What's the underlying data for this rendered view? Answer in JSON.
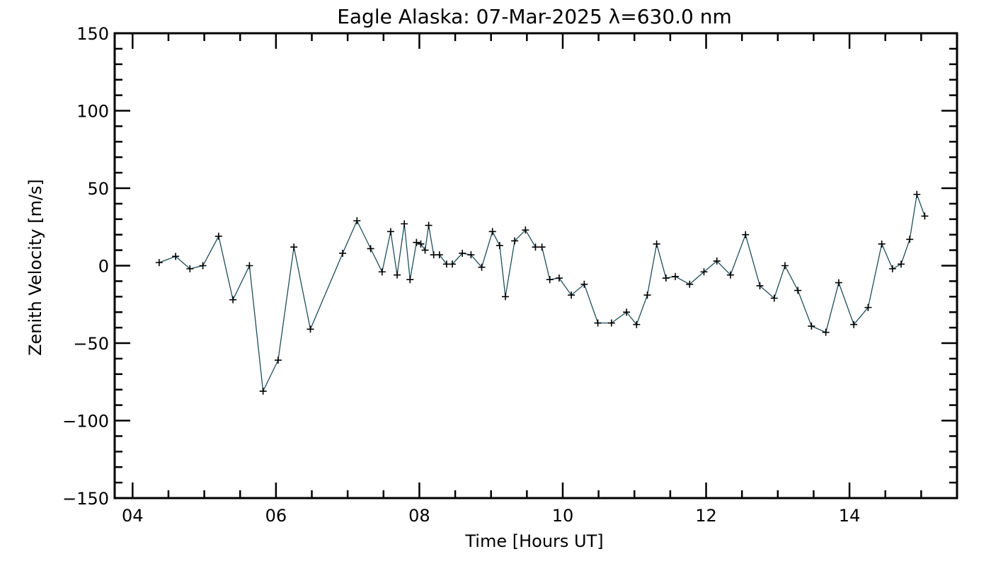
{
  "chart_data": {
    "type": "line",
    "title": "Eagle Alaska: 07-Mar-2025 λ=630.0 nm",
    "xlabel": "Time [Hours UT]",
    "ylabel": "Zenith Velocity [m/s]",
    "xlim": [
      3.75,
      15.5
    ],
    "ylim": [
      -150,
      150
    ],
    "xticks": [
      {
        "value": 4,
        "label": "04"
      },
      {
        "value": 6,
        "label": "06"
      },
      {
        "value": 8,
        "label": "08"
      },
      {
        "value": 10,
        "label": "10"
      },
      {
        "value": 12,
        "label": "12"
      },
      {
        "value": 14,
        "label": "14"
      }
    ],
    "yticks": [
      {
        "value": -150,
        "label": "−150"
      },
      {
        "value": -100,
        "label": "−100"
      },
      {
        "value": -50,
        "label": "−50"
      },
      {
        "value": 0,
        "label": "0"
      },
      {
        "value": 50,
        "label": "50"
      },
      {
        "value": 100,
        "label": "100"
      },
      {
        "value": 150,
        "label": "150"
      }
    ],
    "grid": false,
    "marker": "plus",
    "line_color": "#1f4e5a",
    "marker_color": "#000000",
    "series": [
      {
        "x": [
          4.37,
          4.6,
          4.8,
          4.98,
          5.2,
          5.4,
          5.63,
          5.82,
          6.03,
          6.25,
          6.48,
          6.93,
          7.13,
          7.32,
          7.48,
          7.6,
          7.69,
          7.79,
          7.87,
          7.96,
          8.02,
          8.08,
          8.13,
          8.2,
          8.28,
          8.38,
          8.46,
          8.6,
          8.72,
          8.87,
          9.02,
          9.12,
          9.2,
          9.33,
          9.48,
          9.62,
          9.71,
          9.82,
          9.95,
          10.12,
          10.3,
          10.49,
          10.68,
          10.89,
          11.03,
          11.18,
          11.31,
          11.44,
          11.57,
          11.77,
          11.97,
          12.15,
          12.34,
          12.55,
          12.75,
          12.95,
          13.1,
          13.28,
          13.47,
          13.67,
          13.85,
          14.06,
          14.26,
          14.45,
          14.6,
          14.72,
          14.84,
          14.94,
          15.05
        ],
        "y": [
          2,
          6,
          -2,
          0,
          19,
          -22,
          0,
          -81,
          -61,
          12,
          -41,
          8,
          29,
          11,
          -4,
          22,
          -6,
          27,
          -9,
          15,
          14,
          10,
          26,
          7,
          7,
          1,
          1,
          8,
          7,
          -1,
          22,
          13,
          -20,
          16,
          23,
          12,
          12,
          -9,
          -8,
          -19,
          -12,
          -37,
          -37,
          -30,
          -38,
          -19,
          14,
          -8,
          -7,
          -12,
          -4,
          3,
          -6,
          20,
          -13,
          -21,
          0,
          -16,
          -39,
          -43,
          -11,
          -38,
          -27,
          14,
          -2,
          1,
          17,
          46,
          32
        ]
      }
    ]
  }
}
